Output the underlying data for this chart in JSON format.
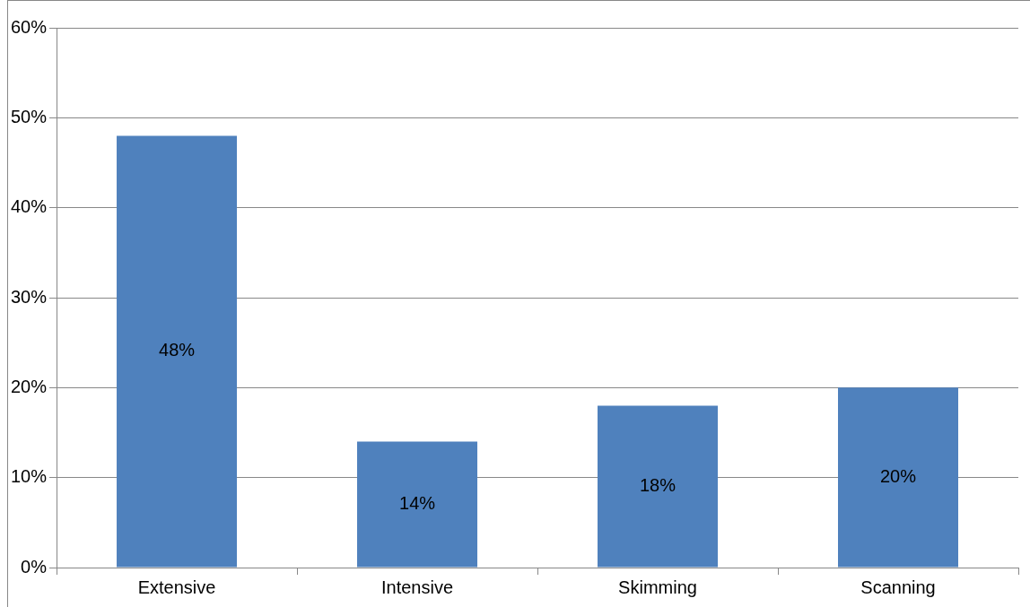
{
  "chart_data": {
    "type": "bar",
    "categories": [
      "Extensive",
      "Intensive",
      "Skimming",
      "Scanning"
    ],
    "values": [
      48,
      14,
      18,
      20
    ],
    "value_labels": [
      "48%",
      "14%",
      "18%",
      "20%"
    ],
    "color": "#4f81bd",
    "ylim": [
      0,
      60
    ],
    "yticks": [
      {
        "value": 0,
        "label": "0%"
      },
      {
        "value": 10,
        "label": "10%"
      },
      {
        "value": 20,
        "label": "20%"
      },
      {
        "value": 30,
        "label": "30%"
      },
      {
        "value": 40,
        "label": "40%"
      },
      {
        "value": 50,
        "label": "50%"
      },
      {
        "value": 60,
        "label": "60%"
      }
    ],
    "grid": "y",
    "legend": false
  }
}
